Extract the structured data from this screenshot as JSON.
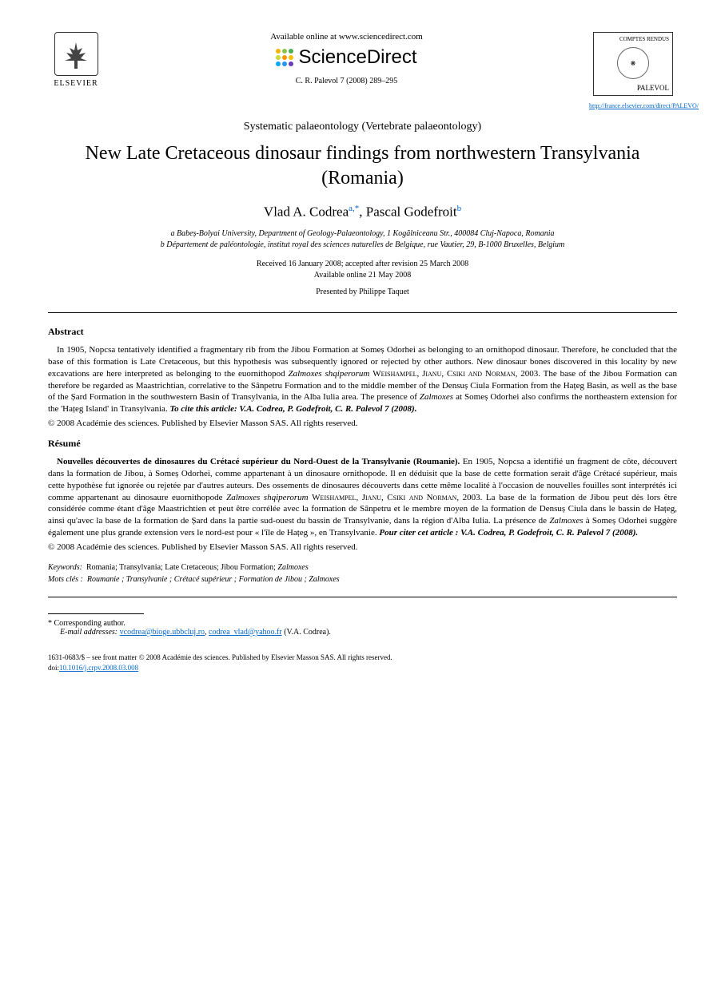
{
  "header": {
    "elsevier_label": "ELSEVIER",
    "available_online": "Available online at www.sciencedirect.com",
    "sciencedirect_text": "ScienceDirect",
    "sd_dot_colors": [
      "#f7b500",
      "#8bc34a",
      "#4caf50",
      "#cddc39",
      "#ff9800",
      "#ffc107",
      "#03a9f4",
      "#2196f3",
      "#673ab7"
    ],
    "citation_line": "C. R. Palevol 7 (2008) 289–295",
    "journal_top": "COMPTES RENDUS",
    "journal_bottom": "PALEVOL",
    "journal_url": "http://france.elsevier.com/direct/PALEVO/"
  },
  "article": {
    "section_topic": "Systematic palaeontology (Vertebrate palaeontology)",
    "title": "New Late Cretaceous dinosaur findings from northwestern Transylvania (Romania)",
    "author1": "Vlad A. Codrea",
    "author1_marks": "a,*",
    "author2": "Pascal Godefroit",
    "author2_marks": "b",
    "affil_a": "a Babeș-Bolyai University, Department of Geology-Palaeontology, 1 Kogălniceanu Str., 400084 Cluj-Napoca, Romania",
    "affil_b": "b Département de paléontologie, institut royal des sciences naturelles de Belgique, rue Vautier, 29, B-1000 Bruxelles, Belgium",
    "received": "Received 16 January 2008; accepted after revision 25 March 2008",
    "available": "Available online 21 May 2008",
    "presented": "Presented by Philippe Taquet"
  },
  "abstract": {
    "heading": "Abstract",
    "body_html": "In 1905, Nopcsa tentatively identified a fragmentary rib from the Jibou Formation at Someș Odorhei as belonging to an ornithopod dinosaur. Therefore, he concluded that the base of this formation is Late Cretaceous, but this hypothesis was subsequently ignored or rejected by other authors. New dinosaur bones discovered in this locality by new excavations are here interpreted as belonging to the euornithopod <span class=\"taxon\">Zalmoxes shqiperorum</span> <span class=\"smallcaps\">Weishampel, Jianu, Csiki and Norman</span>, 2003. The base of the Jibou Formation can therefore be regarded as Maastrichtian, correlative to the Sânpetru Formation and to the middle member of the Densuș Ciula Formation from the Hațeg Basin, as well as the base of the Șard Formation in the southwestern Basin of Transylvania, in the Alba Iulia area. The presence of <span class=\"taxon\">Zalmoxes</span> at Someș Odorhei also confirms the northeastern extension for the 'Hațeg Island' in Transylvania. <span class=\"cite-italic\">To cite this article: V.A. Codrea, P. Godefroit, C. R. Palevol 7 (2008).</span>",
    "copyright": "© 2008 Académie des sciences. Published by Elsevier Masson SAS. All rights reserved."
  },
  "resume": {
    "heading": "Résumé",
    "lead": "Nouvelles découvertes de dinosaures du Crétacé supérieur du Nord-Ouest de la Transylvanie (Roumanie).",
    "body_html": " En 1905, Nopcsa a identifié un fragment de côte, découvert dans la formation de Jibou, à Someș Odorhei, comme appartenant à un dinosaure ornithopode. Il en déduisit que la base de cette formation serait d'âge Crétacé supérieur, mais cette hypothèse fut ignorée ou rejetée par d'autres auteurs. Des ossements de dinosaures découverts dans cette même localité à l'occasion de nouvelles fouilles sont interprétés ici comme appartenant au dinosaure euornithopode <span class=\"taxon\">Zalmoxes shqiperorum</span> <span class=\"smallcaps\">Weishampel, Jianu, Csiki and Norman</span>, 2003. La base de la formation de Jibou peut dès lors être considérée comme étant d'âge Maastrichtien et peut être corrélée avec la formation de Sânpetru et le membre moyen de la formation de Densuș Ciula dans le bassin de Hațeg, ainsi qu'avec la base de la formation de Șard dans la partie sud-ouest du bassin de Transylvanie, dans la région d'Alba Iulia. La présence de <span class=\"taxon\">Zalmoxes</span> à Someș Odorhei suggère également une plus grande extension vers le nord-est pour « l'île de Hațeg », en Transylvanie. <span class=\"cite-italic\">Pour citer cet article : V.A. Codrea, P. Godefroit, C. R. Palevol 7 (2008).</span>",
    "copyright": "© 2008 Académie des sciences. Published by Elsevier Masson SAS. All rights reserved."
  },
  "keywords": {
    "label": "Keywords:",
    "values": "Romania; Transylvania; Late Cretaceous; Jibou Formation; Zalmoxes"
  },
  "motscles": {
    "label": "Mots clés :",
    "values": "Roumanie ; Transylvanie ; Crétacé supérieur ; Formation de Jibou ; Zalmoxes"
  },
  "footer": {
    "corresponding": "* Corresponding author.",
    "email_label": "E-mail addresses:",
    "email1": "vcodrea@bioge.ubbcluj.ro",
    "email2": "codrea_vlad@yahoo.fr",
    "email_attribution": "(V.A. Codrea).",
    "issn_line": "1631-0683/$ – see front matter © 2008 Académie des sciences. Published by Elsevier Masson SAS. All rights reserved.",
    "doi_prefix": "doi:",
    "doi": "10.1016/j.crpv.2008.03.008"
  }
}
